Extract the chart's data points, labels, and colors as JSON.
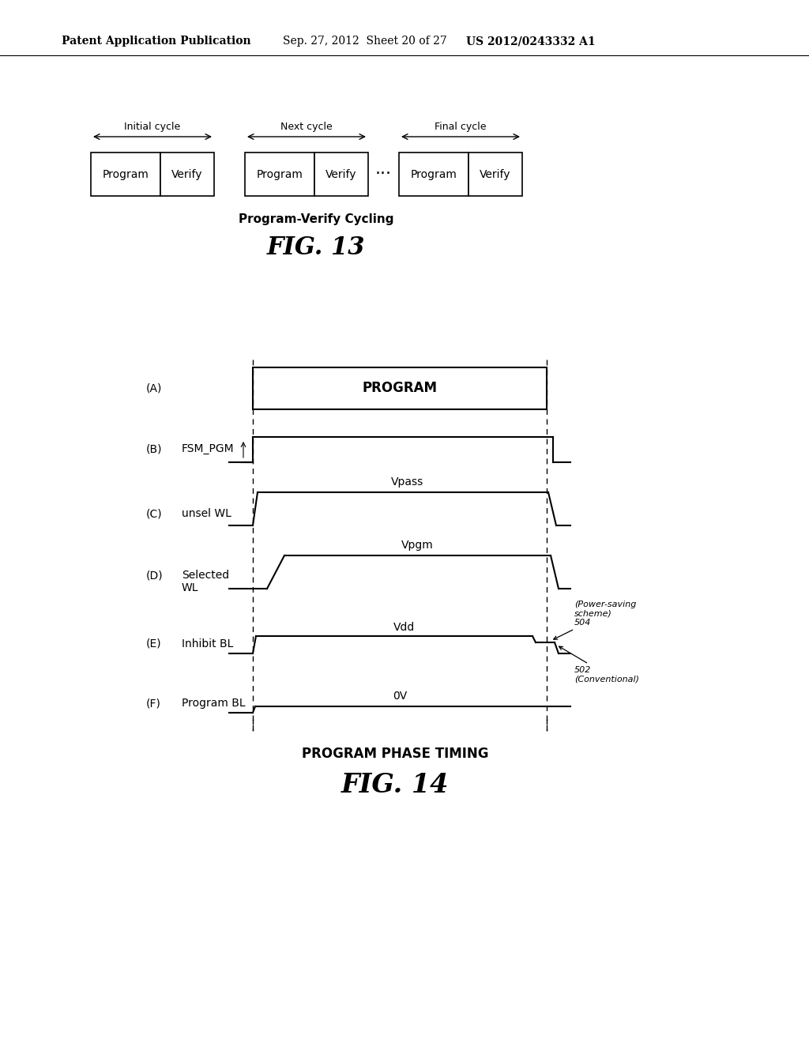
{
  "bg_color": "#ffffff",
  "header_text": "Patent Application Publication",
  "header_date": "Sep. 27, 2012  Sheet 20 of 27",
  "header_patent": "US 2012/0243332 A1",
  "fig13_title": "Program-Verify Cycling",
  "fig13_label": "FIG. 13",
  "fig14_diagram_title": "PROGRAM PHASE TIMING",
  "fig14_label": "FIG. 14"
}
